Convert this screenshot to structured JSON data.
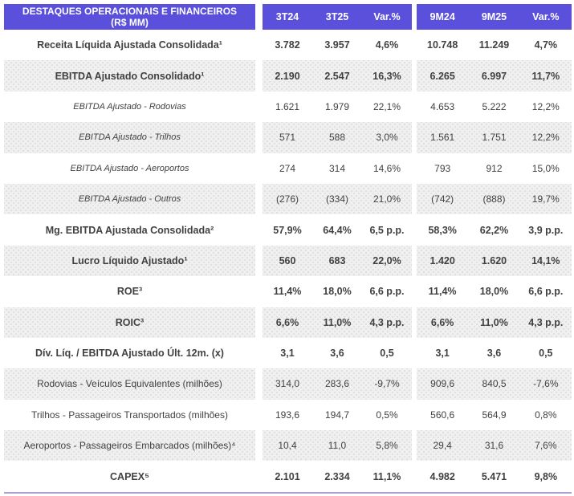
{
  "header": {
    "title": "DESTAQUES OPERACIONAIS E FINANCEIROS\n(R$ MM)",
    "columns_quarter": [
      "3T24",
      "3T25",
      "Var.%"
    ],
    "columns_ytd": [
      "9M24",
      "9M25",
      "Var.%"
    ]
  },
  "colors": {
    "header_bg": "#5A50DB",
    "header_text": "#FFFFFF",
    "body_text": "#414141",
    "alt_row_bg": "#F0F0F0",
    "bottom_line": "#A89EE8"
  },
  "rows": [
    {
      "label": "Receita Líquida Ajustada Consolidada¹",
      "q": [
        "3.782",
        "3.957",
        "4,6%"
      ],
      "y": [
        "10.748",
        "11.249",
        "4,7%"
      ]
    },
    {
      "label": "EBITDA Ajustado Consolidado¹",
      "q": [
        "2.190",
        "2.547",
        "16,3%"
      ],
      "y": [
        "6.265",
        "6.997",
        "11,7%"
      ]
    },
    {
      "label": "EBITDA Ajustado - Rodovias",
      "q": [
        "1.621",
        "1.979",
        "22,1%"
      ],
      "y": [
        "4.653",
        "5.222",
        "12,2%"
      ]
    },
    {
      "label": "EBITDA Ajustado - Trilhos",
      "q": [
        "571",
        "588",
        "3,0%"
      ],
      "y": [
        "1.561",
        "1.751",
        "12,2%"
      ]
    },
    {
      "label": "EBITDA Ajustado - Aeroportos",
      "q": [
        "274",
        "314",
        "14,6%"
      ],
      "y": [
        "793",
        "912",
        "15,0%"
      ]
    },
    {
      "label": "EBITDA Ajustado - Outros",
      "q": [
        "(276)",
        "(334)",
        "21,0%"
      ],
      "y": [
        "(742)",
        "(888)",
        "19,7%"
      ]
    },
    {
      "label": "Mg. EBITDA Ajustada Consolidada²",
      "q": [
        "57,9%",
        "64,4%",
        "6,5 p.p."
      ],
      "y": [
        "58,3%",
        "62,2%",
        "3,9 p.p."
      ]
    },
    {
      "label": "Lucro Líquido Ajustado¹",
      "q": [
        "560",
        "683",
        "22,0%"
      ],
      "y": [
        "1.420",
        "1.620",
        "14,1%"
      ]
    },
    {
      "label": "ROE³",
      "q": [
        "11,4%",
        "18,0%",
        "6,6 p.p."
      ],
      "y": [
        "11,4%",
        "18,0%",
        "6,6 p.p."
      ]
    },
    {
      "label": "ROIC³",
      "q": [
        "6,6%",
        "11,0%",
        "4,3 p.p."
      ],
      "y": [
        "6,6%",
        "11,0%",
        "4,3 p.p."
      ]
    },
    {
      "label": "Dív. Líq. / EBITDA Ajustado Últ. 12m. (x)",
      "q": [
        "3,1",
        "3,6",
        "0,5"
      ],
      "y": [
        "3,1",
        "3,6",
        "0,5"
      ]
    },
    {
      "label": "Rodovias - Veículos Equivalentes (milhões)",
      "q": [
        "314,0",
        "283,6",
        "-9,7%"
      ],
      "y": [
        "909,6",
        "840,5",
        "-7,6%"
      ]
    },
    {
      "label": "Trilhos - Passageiros Transportados (milhões)",
      "q": [
        "193,6",
        "194,7",
        "0,5%"
      ],
      "y": [
        "560,6",
        "564,9",
        "0,8%"
      ]
    },
    {
      "label": "Aeroportos - Passageiros Embarcados (milhões)⁴",
      "q": [
        "10,4",
        "11,0",
        "5,8%"
      ],
      "y": [
        "29,4",
        "31,6",
        "7,6%"
      ]
    },
    {
      "label": "CAPEX⁵",
      "q": [
        "2.101",
        "2.334",
        "11,1%"
      ],
      "y": [
        "4.982",
        "5.471",
        "9,8%"
      ]
    }
  ]
}
